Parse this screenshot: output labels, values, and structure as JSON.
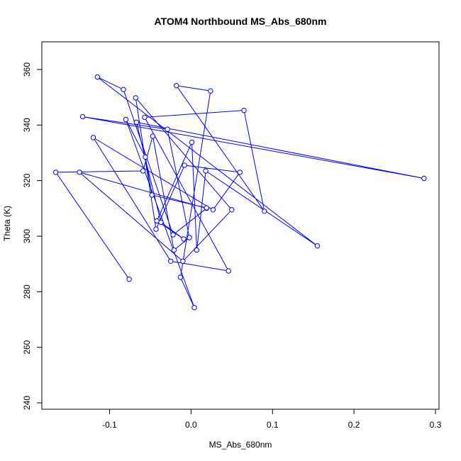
{
  "chart_data": {
    "type": "line",
    "title": "ATOM4 Northbound MS_Abs_680nm",
    "xlabel": "MS_Abs_680nm",
    "ylabel": "Theta (K)",
    "xlim": [
      -0.17,
      0.3
    ],
    "ylim": [
      240,
      360
    ],
    "xticks": [
      -0.1,
      0.0,
      0.1,
      0.2,
      0.3
    ],
    "xtick_labels": [
      "-0.1",
      "0.0",
      "0.1",
      "0.2",
      "0.3"
    ],
    "yticks": [
      240,
      260,
      280,
      300,
      320,
      340,
      360
    ],
    "ytick_labels": [
      "240",
      "260",
      "280",
      "300",
      "320",
      "340",
      "360"
    ],
    "grid": false,
    "series": [
      {
        "color": "#0000ff",
        "marker": "open-circle",
        "x": [
          -0.076,
          -0.166,
          -0.059,
          -0.047,
          -0.021,
          -0.002,
          -0.029,
          -0.133,
          0.286,
          -0.067,
          -0.037,
          -0.009,
          -0.042,
          0.001,
          0.007,
          0.018,
          0.155,
          -0.115,
          -0.083,
          -0.022,
          0.019,
          -0.137,
          -0.01,
          0.05,
          -0.068,
          -0.043,
          -0.008,
          0.06,
          0.027,
          -0.12,
          -0.025,
          0.046,
          -0.057,
          0.065,
          0.09,
          -0.018,
          0.024,
          -0.013,
          0.004,
          -0.08,
          -0.056,
          -0.048,
          0.019
        ],
        "y": [
          284.5,
          323.0,
          323.5,
          336.0,
          295.0,
          299.5,
          338.5,
          343.0,
          320.8,
          341.0,
          305.0,
          299.0,
          305.5,
          333.8,
          295.0,
          323.5,
          296.5,
          357.3,
          352.8,
          300.5,
          310.0,
          323.0,
          291.0,
          309.5,
          349.8,
          302.5,
          325.5,
          323.0,
          309.5,
          335.5,
          291.0,
          287.5,
          342.8,
          345.3,
          309.0,
          354.2,
          352.3,
          285.2,
          274.3,
          342.0,
          328.5,
          314.8,
          310.2
        ]
      }
    ]
  }
}
